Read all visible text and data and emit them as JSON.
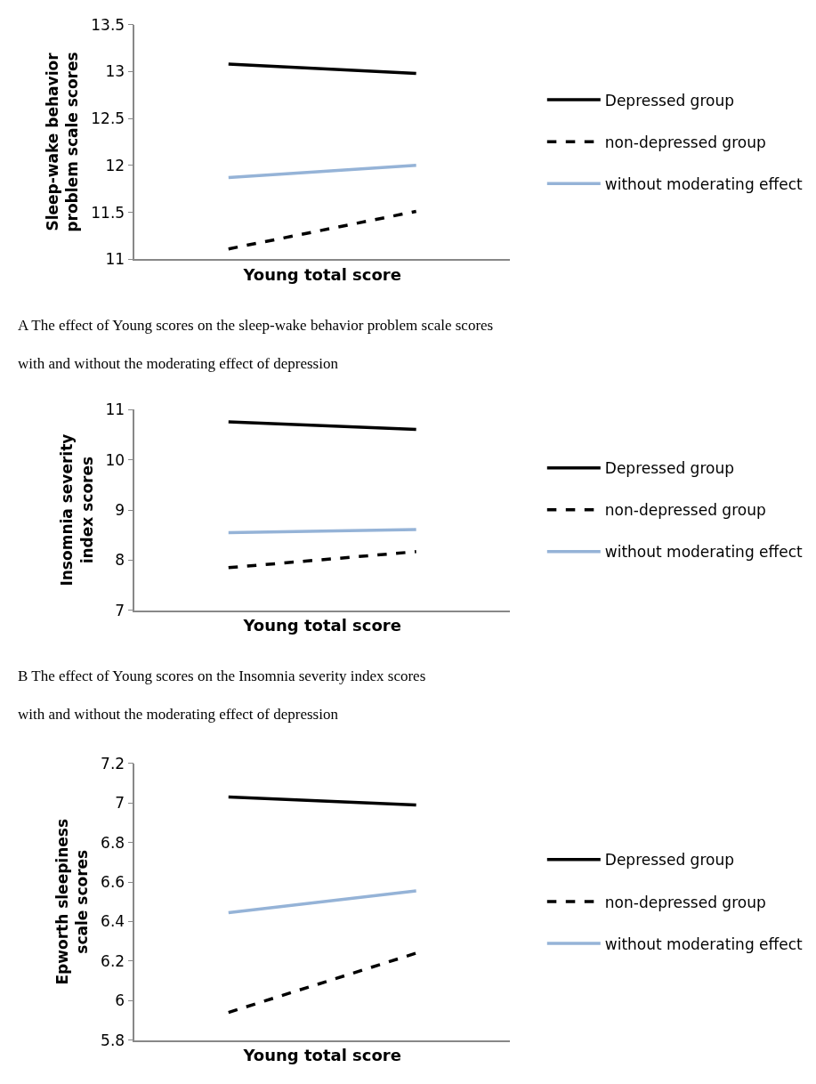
{
  "chart_data": [
    {
      "type": "line",
      "categories": [
        null,
        null
      ],
      "xlabel": "Young total score",
      "ylabel": "Sleep-wake behavior problem scale scores",
      "ylim": [
        11,
        13.5
      ],
      "yticks": [
        11,
        11.5,
        12,
        12.5,
        13,
        13.5
      ],
      "legend": "right",
      "series": [
        {
          "name": "Depressed group",
          "color": "#000000",
          "line_style": "solid",
          "values": [
            13.08,
            12.98
          ]
        },
        {
          "name": "non-depressed group",
          "color": "#000000",
          "line_style": "dashed",
          "values": [
            11.11,
            11.51
          ]
        },
        {
          "name": "without moderating effect",
          "color": "#95b3d7",
          "line_style": "solid",
          "values": [
            11.87,
            12.0
          ]
        }
      ],
      "annotations": [
        "A The effect of Young scores on the sleep-wake behavior problem scale scores",
        "with and without the moderating effect of depression"
      ]
    },
    {
      "type": "line",
      "categories": [
        null,
        null
      ],
      "xlabel": "Young total score",
      "ylabel": "Insomnia severity index scores",
      "ylim": [
        7,
        11
      ],
      "yticks": [
        7,
        8,
        9,
        10,
        11
      ],
      "legend": "right",
      "series": [
        {
          "name": "Depressed group",
          "color": "#000000",
          "line_style": "solid",
          "values": [
            10.76,
            10.61
          ]
        },
        {
          "name": "non-depressed group",
          "color": "#000000",
          "line_style": "dashed",
          "values": [
            7.85,
            8.17
          ]
        },
        {
          "name": "without moderating effect",
          "color": "#95b3d7",
          "line_style": "solid",
          "values": [
            8.55,
            8.61
          ]
        }
      ],
      "annotations": [
        "B The effect of Young scores on the Insomnia severity index scores",
        "with and without the moderating effect of depression"
      ]
    },
    {
      "type": "line",
      "categories": [
        null,
        null
      ],
      "xlabel": "Young total score",
      "ylabel": "Epworth sleepiness scale scores",
      "ylim": [
        5.8,
        7.2
      ],
      "yticks": [
        5.8,
        6,
        6.2,
        6.4,
        6.6,
        6.8,
        7,
        7.2
      ],
      "legend": "right",
      "series": [
        {
          "name": "Depressed group",
          "color": "#000000",
          "line_style": "solid",
          "values": [
            7.03,
            6.99
          ]
        },
        {
          "name": "non-depressed group",
          "color": "#000000",
          "line_style": "dashed",
          "values": [
            5.94,
            6.24
          ]
        },
        {
          "name": "without moderating effect",
          "color": "#95b3d7",
          "line_style": "solid",
          "values": [
            6.445,
            6.555
          ]
        }
      ]
    }
  ]
}
